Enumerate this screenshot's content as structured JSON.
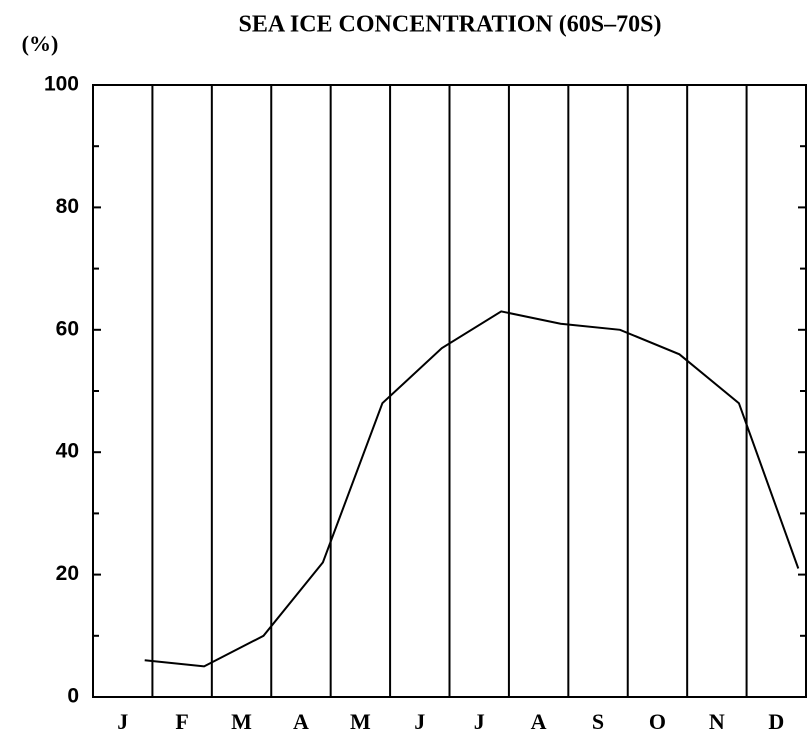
{
  "chart_data": {
    "type": "line",
    "title": "SEA ICE CONCENTRATION (60S–70S)",
    "y_label": "(%)",
    "categories": [
      "J",
      "F",
      "M",
      "A",
      "M",
      "J",
      "J",
      "A",
      "S",
      "O",
      "N",
      "D"
    ],
    "series": [
      {
        "name": "Sea ice concentration",
        "color": "#000000",
        "values": [
          6,
          5,
          10,
          22,
          48,
          57,
          63,
          61,
          60,
          56,
          48,
          21
        ]
      }
    ],
    "ylim": [
      0,
      100
    ],
    "yticks": [
      0,
      20,
      40,
      60,
      80,
      100
    ]
  }
}
